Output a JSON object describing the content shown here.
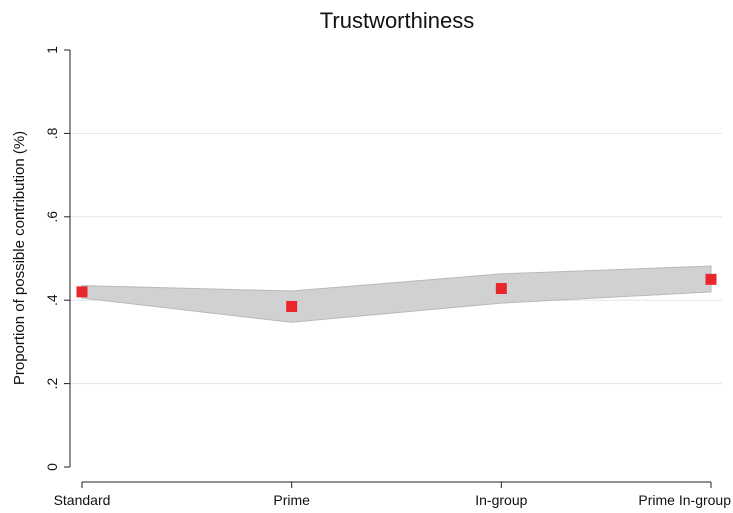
{
  "chart_data": {
    "type": "line",
    "title": "Trustworthiness",
    "xlabel": "",
    "ylabel": "Proportion of possible contribution (%)",
    "categories": [
      "Standard",
      "Prime",
      "In-group",
      "Prime In-group"
    ],
    "ylim": [
      0,
      1
    ],
    "yticks": [
      0,
      0.2,
      0.4,
      0.6,
      0.8,
      1
    ],
    "ytick_labels": [
      "0",
      ".2",
      ".4",
      ".6",
      ".8",
      "1"
    ],
    "grid": true,
    "series": [
      {
        "values": [
          0.42,
          0.385,
          0.428,
          0.45
        ],
        "marker": "square",
        "color": "#e8262b"
      }
    ],
    "band": {
      "lower": [
        0.405,
        0.347,
        0.393,
        0.42
      ],
      "upper": [
        0.435,
        0.422,
        0.463,
        0.482
      ],
      "color": "#d0d1d3"
    }
  }
}
